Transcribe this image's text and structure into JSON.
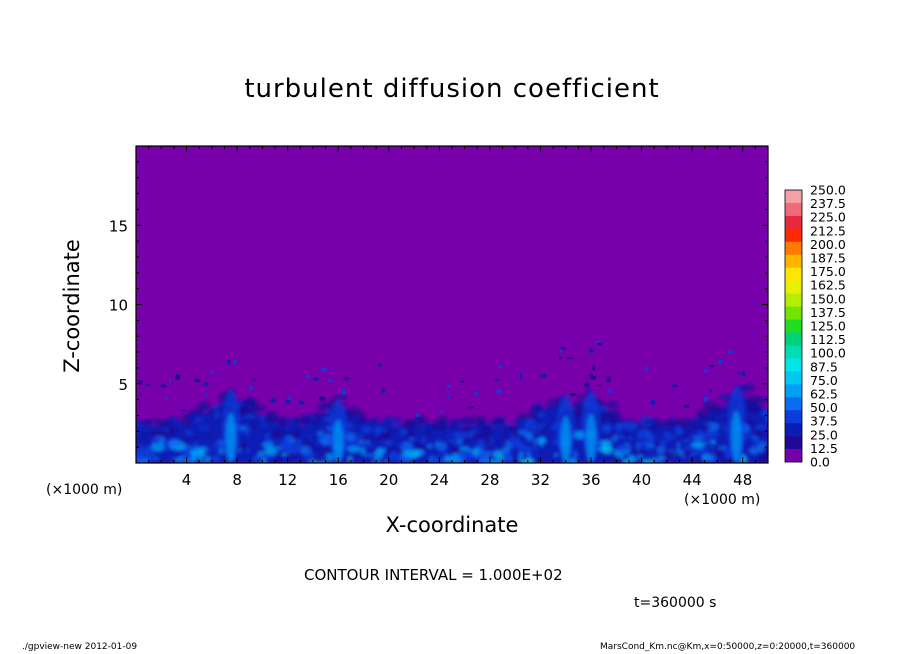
{
  "chart_data": {
    "type": "heatmap",
    "title": "turbulent diffusion coefficient",
    "xlabel": "X-coordinate",
    "ylabel": "Z-coordinate",
    "x_unit_label": "(×1000 m)",
    "xlim": [
      0,
      50
    ],
    "ylim": [
      0,
      20
    ],
    "xticks": [
      "4",
      "8",
      "12",
      "16",
      "20",
      "24",
      "28",
      "32",
      "36",
      "40",
      "44",
      "48"
    ],
    "yticks": [
      "5",
      "10",
      "15"
    ],
    "colorbar_levels": [
      "250.0",
      "237.5",
      "225.0",
      "212.5",
      "200.0",
      "187.5",
      "175.0",
      "162.5",
      "150.0",
      "137.5",
      "125.0",
      "112.5",
      "100.0",
      "87.5",
      "75.0",
      "62.5",
      "50.0",
      "37.5",
      "25.0",
      "12.5",
      "0.0"
    ],
    "colorbar_colors": [
      "#f4a0a8",
      "#ef6a7a",
      "#e82a3c",
      "#ff2a00",
      "#ff7a00",
      "#ffb400",
      "#ffe600",
      "#e6f000",
      "#b4ee00",
      "#6ee600",
      "#22dc22",
      "#00d27a",
      "#00dcb4",
      "#00e6e6",
      "#00c8f0",
      "#00a0f5",
      "#0a6cf0",
      "#0c3cdc",
      "#0a1eb4",
      "#1e0a96",
      "#7800aa"
    ],
    "background_value": "0.0",
    "background_color": "#7800aa",
    "turbulent_layer_top": 5
  },
  "annotations": {
    "contour_interval": "CONTOUR INTERVAL = 1.000E+02",
    "time": "t=360000 s",
    "footer_left": "./gpview-new  2012-01-09",
    "footer_right": "MarsCond_Km.nc@Km,x=0:50000,z=0:20000,t=360000"
  }
}
